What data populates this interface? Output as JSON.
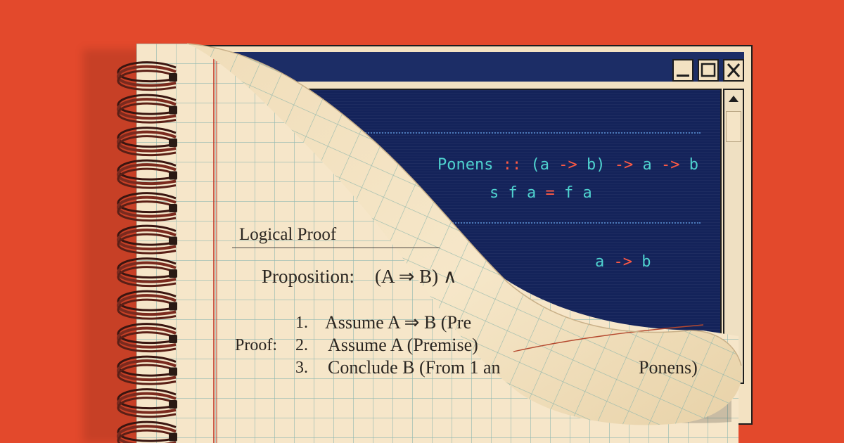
{
  "window": {
    "controls": [
      "minimize",
      "maximize",
      "close"
    ],
    "code_lines": [
      [
        "Ponens",
        " :: ",
        "(a -> b)",
        " -> a -> b"
      ],
      [
        "s f a = f a"
      ],
      [
        "a -> b"
      ]
    ]
  },
  "notebook": {
    "title": "Logical Proof",
    "proposition_label": "Proposition:",
    "proposition": "(A ⇒ B) ∧",
    "proof_label": "Proof:",
    "steps": [
      {
        "num": "1.",
        "text": "Assume A ⇒ B (Pre"
      },
      {
        "num": "2.",
        "text": "Assume A (Premise)"
      },
      {
        "num": "3.",
        "text": "Conclude B (From 1 an"
      }
    ],
    "step3_tail": "Ponens)"
  },
  "colors": {
    "background": "#e3492c",
    "paper": "#f6e6c9",
    "grid": "#8fb8b0",
    "margin_line": "#c23a2a",
    "screen": "#14235a",
    "code_cyan": "#4fd2cf",
    "code_red": "#ff5a44"
  }
}
